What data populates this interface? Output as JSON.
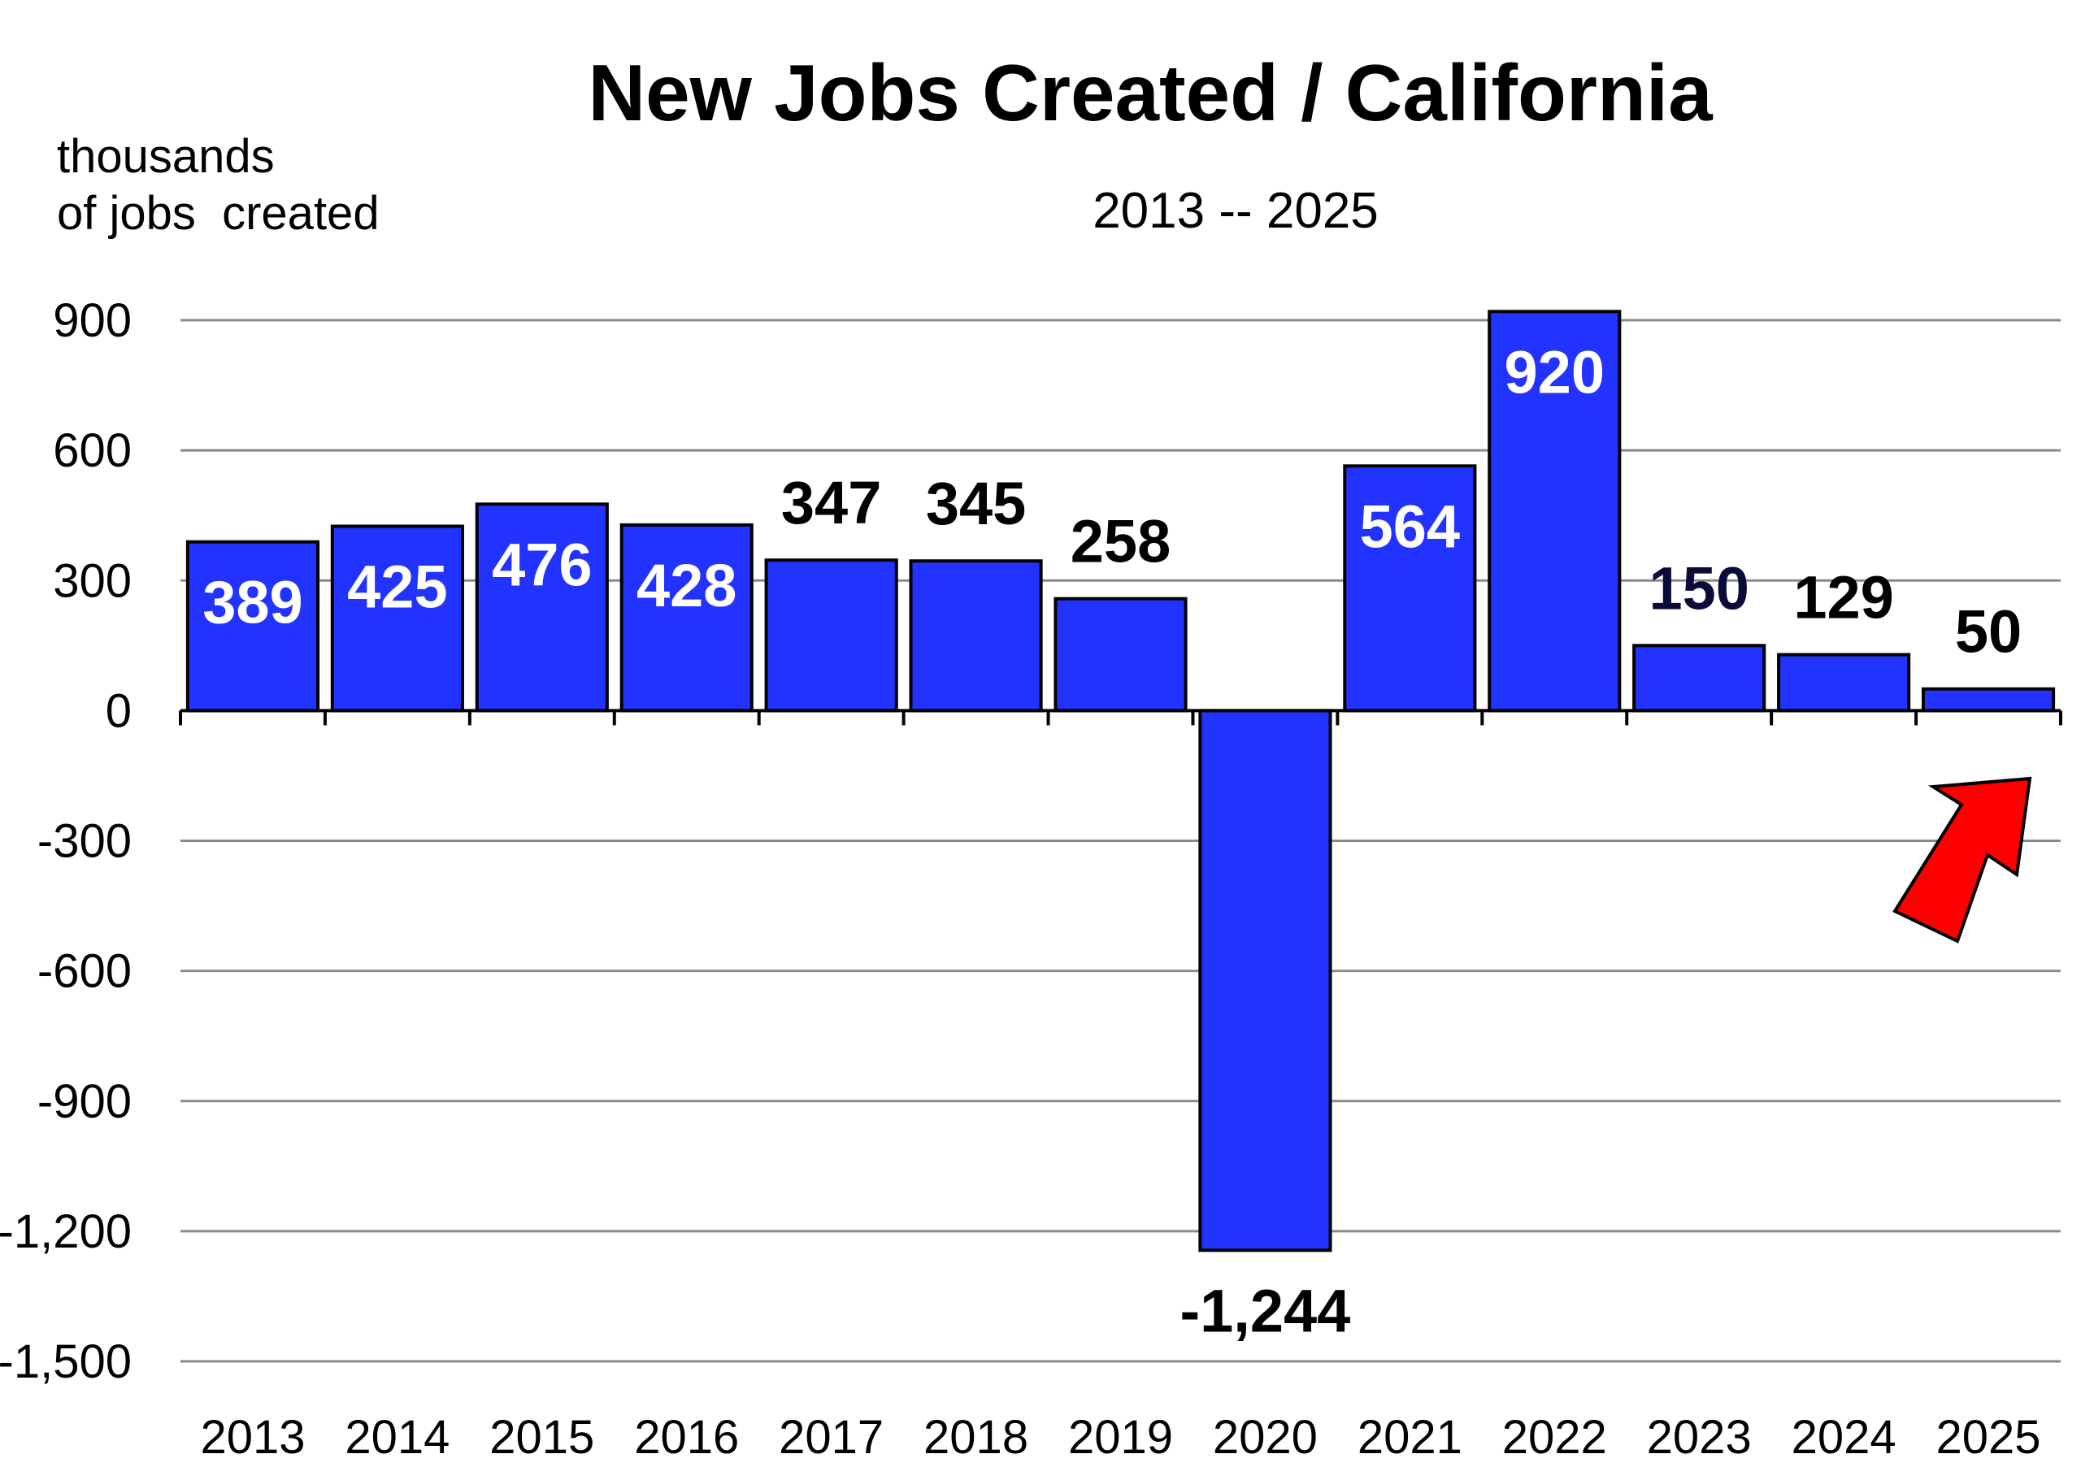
{
  "chart_data": {
    "type": "bar",
    "title": "New Jobs Created / California",
    "subtitle": "2013 -- 2025",
    "ylabel_lines": [
      "thousands",
      "of jobs  created"
    ],
    "xlabel": "",
    "categories": [
      "2013",
      "2014",
      "2015",
      "2016",
      "2017",
      "2018",
      "2019",
      "2020",
      "2021",
      "2022",
      "2023",
      "2024",
      "2025"
    ],
    "values": [
      389,
      425,
      476,
      428,
      347,
      345,
      258,
      -1244,
      564,
      920,
      150,
      129,
      50
    ],
    "data_labels": [
      "389",
      "425",
      "476",
      "428",
      "347",
      "345",
      "258",
      "-1,244",
      "564",
      "920",
      "150",
      "129",
      "50"
    ],
    "ylim": [
      -1500,
      900
    ],
    "yticks": [
      900,
      600,
      300,
      0,
      -300,
      -600,
      -900,
      -1200,
      -1500
    ],
    "ytick_labels": [
      "900",
      "600",
      "300",
      "0",
      "-300",
      "-600",
      "-900",
      "-1,200",
      "-1,500"
    ],
    "grid": true,
    "bar_color": "#2233ff",
    "inside_label_color": "#ffffff",
    "outside_label_color": "#000000",
    "highlight_label_color": "#0b0b3a",
    "annotation": {
      "type": "arrow",
      "icon": "red-up-arrow-icon",
      "color": "#ff0000",
      "points_to": "2025"
    }
  }
}
